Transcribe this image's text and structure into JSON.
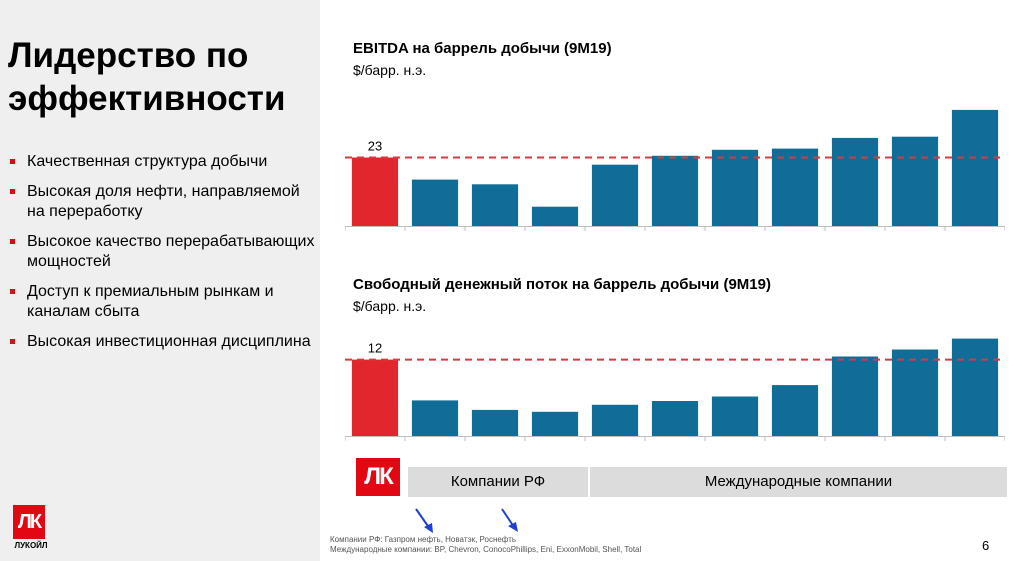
{
  "slide": {
    "title": "Лидерство по эффективности",
    "bullets": [
      "Качественная структура добычи",
      "Высокая доля нефти, направляемой на переработку",
      "Высокое качество перерабатывающих мощностей",
      "Доступ к премиальным рынкам и каналам сбыта",
      "Высокая инвестиционная дисциплина"
    ],
    "logo_text": "ЛУКОЙЛ",
    "logo_glyph": "ЛК",
    "page_number": "6"
  },
  "legend": {
    "russian": "Компании РФ",
    "international": "Международные компании"
  },
  "footnotes": {
    "line1": "Компании РФ: Газпром нефть, Новатэк, Роснефть",
    "line2": "Международные компании: BP, Chevron, ConocoPhillips, Eni, ExxonMobil, Shell, Total"
  },
  "colors": {
    "lukoil": "#e1262d",
    "peers": "#0f6d97",
    "reference_line": "#d9383f",
    "accent": "#e30613"
  },
  "chart_data": [
    {
      "type": "bar",
      "title": "EBITDA на баррель добычи (9M19)",
      "unit": "$/барр. н.э.",
      "values": [
        23,
        15.6,
        14,
        6.5,
        20.6,
        23.6,
        25.6,
        26,
        29.6,
        30,
        39
      ],
      "highlight_index": 0,
      "data_labels": [
        "23",
        "",
        "",
        "",
        "",
        "",
        "",
        "",
        "",
        "",
        ""
      ],
      "reference_line": 23,
      "ylim": [
        0,
        42
      ],
      "grid": false
    },
    {
      "type": "bar",
      "title": "Свободный денежный поток на баррель добычи (9M19)",
      "unit": "$/барр. н.э.",
      "values": [
        12,
        5.6,
        4.1,
        3.8,
        4.9,
        5.5,
        6.2,
        8,
        12.5,
        13.6,
        15.3
      ],
      "highlight_index": 0,
      "data_labels": [
        "12",
        "",
        "",
        "",
        "",
        "",
        "",
        "",
        "",
        "",
        ""
      ],
      "reference_line": 12,
      "ylim": [
        0,
        16.5
      ],
      "grid": false
    }
  ]
}
